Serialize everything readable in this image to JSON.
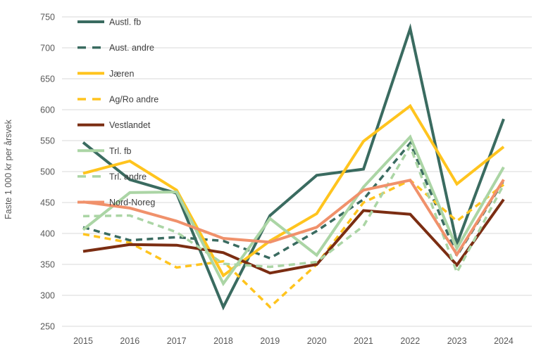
{
  "chart_data": {
    "type": "line",
    "title": "",
    "xlabel": "",
    "ylabel": "Faste 1 000 kr per årsvek",
    "ylim": [
      250,
      750
    ],
    "ytick_step": 50,
    "grid": true,
    "legend_position": "top-left",
    "x": [
      "2015",
      "2016",
      "2017",
      "2018",
      "2019",
      "2020",
      "2021",
      "2022",
      "2023",
      "2024"
    ],
    "series": [
      {
        "name": "Austl. fb",
        "color": "#3A6B60",
        "dashed": false,
        "values": [
          547,
          487,
          465,
          281,
          429,
          494,
          504,
          731,
          383,
          585
        ]
      },
      {
        "name": "Aust. andre",
        "color": "#3A6B60",
        "dashed": true,
        "values": [
          410,
          389,
          394,
          388,
          360,
          404,
          455,
          546,
          364,
          485
        ]
      },
      {
        "name": "Jæren",
        "color": "#FFC41E",
        "dashed": false,
        "values": [
          497,
          517,
          470,
          332,
          388,
          432,
          549,
          606,
          480,
          540
        ]
      },
      {
        "name": "Ag/Ro andre",
        "color": "#FFC41E",
        "dashed": true,
        "values": [
          399,
          385,
          345,
          355,
          281,
          350,
          450,
          486,
          420,
          479
        ]
      },
      {
        "name": "Vestlandet",
        "color": "#7B2D12",
        "dashed": false,
        "values": [
          371,
          382,
          381,
          369,
          336,
          350,
          437,
          431,
          349,
          455
        ]
      },
      {
        "name": "Trl. fb",
        "color": "#ABD5A5",
        "dashed": false,
        "values": [
          406,
          466,
          467,
          319,
          424,
          365,
          475,
          556,
          376,
          507
        ]
      },
      {
        "name": "Trl. andre",
        "color": "#ABD5A5",
        "dashed": true,
        "values": [
          428,
          429,
          402,
          351,
          346,
          354,
          412,
          541,
          337,
          479
        ]
      },
      {
        "name": "Nord-Noreg",
        "color": "#F0916B",
        "dashed": false,
        "values": [
          451,
          441,
          420,
          392,
          386,
          410,
          470,
          486,
          366,
          487
        ]
      }
    ],
    "style": {
      "grid_color": "#D9D9D9",
      "tick_color": "#595959",
      "legend_text_color": "#404040",
      "background": "#FFFFFF"
    }
  }
}
